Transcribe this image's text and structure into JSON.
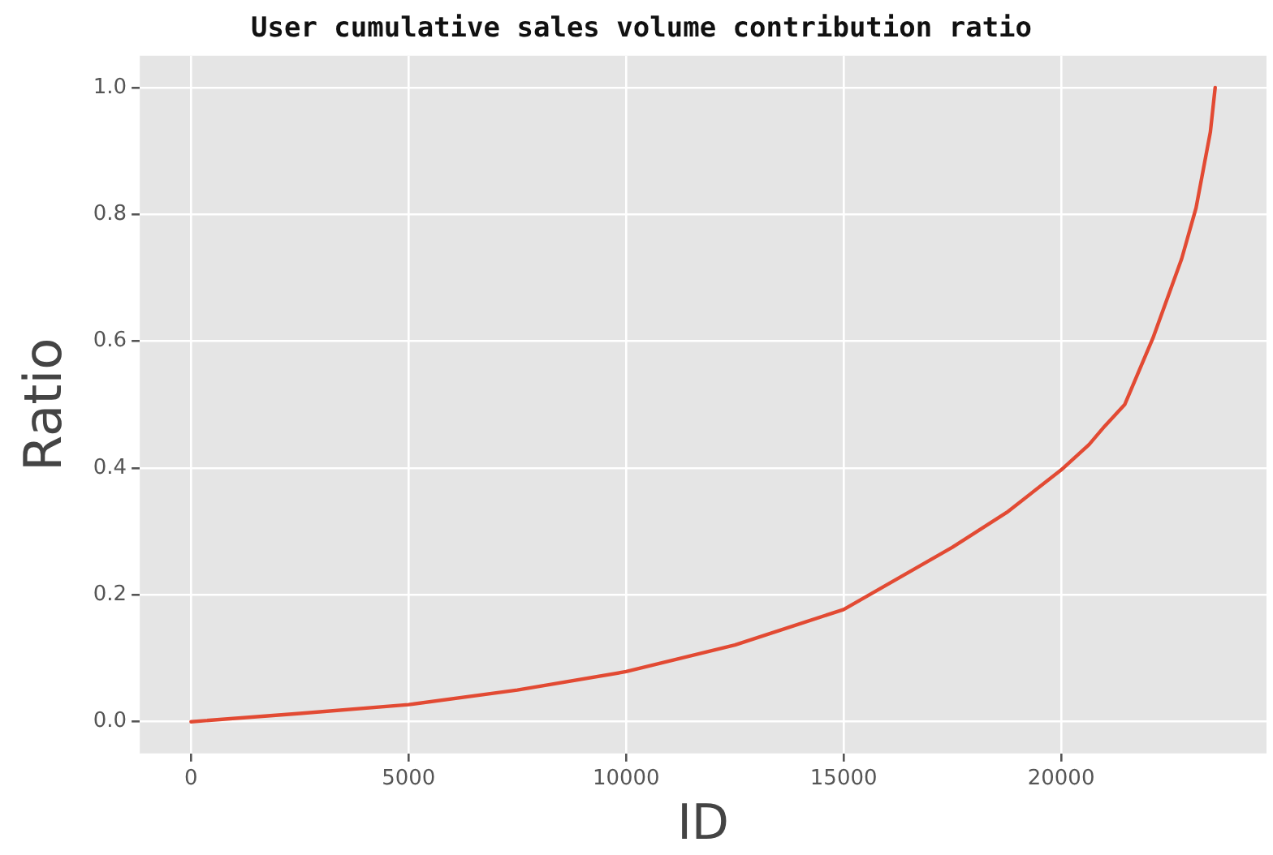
{
  "chart_data": {
    "type": "line",
    "title": "User cumulative sales volume contribution ratio",
    "xlabel": "ID",
    "ylabel": "Ratio",
    "series": [
      {
        "color": "#e24a33",
        "x": [
          0,
          2500,
          5000,
          7500,
          10000,
          12500,
          15000,
          17500,
          18750,
          20000,
          20640,
          21000,
          21460,
          22110,
          22770,
          23100,
          23430,
          23540
        ],
        "values": [
          0,
          0.013,
          0.027,
          0.05,
          0.079,
          0.121,
          0.177,
          0.275,
          0.33,
          0.397,
          0.437,
          0.466,
          0.5,
          0.605,
          0.73,
          0.81,
          0.93,
          1.0
        ]
      }
    ],
    "xlim": [
      -1180,
      24720
    ],
    "xticks": [
      0,
      5000,
      10000,
      15000,
      20000
    ],
    "ylim": [
      -0.05,
      1.05
    ],
    "yticks": [
      {
        "value": 0,
        "label": "0.0"
      },
      {
        "value": 0.2,
        "label": "0.2"
      },
      {
        "value": 0.4,
        "label": "0.4"
      },
      {
        "value": 0.6,
        "label": "0.6"
      },
      {
        "value": 0.8,
        "label": "0.8"
      },
      {
        "value": 1,
        "label": "1.0"
      }
    ],
    "grid": true,
    "legend": false,
    "marker": "none",
    "line_style": "solid"
  }
}
